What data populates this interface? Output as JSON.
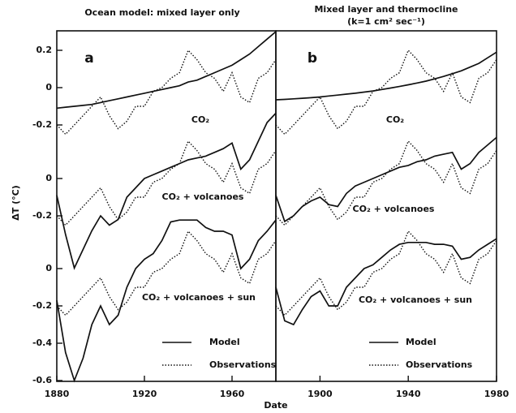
{
  "xlabel": "Date",
  "ylabel": "ΔT (°C)",
  "chart_data": [
    {
      "type": "line",
      "title": "Ocean model: mixed layer only",
      "panel": "a",
      "xlim": [
        1880,
        1980
      ],
      "xticks": [
        1880,
        1920,
        1960
      ],
      "x": [
        1880,
        1884,
        1888,
        1892,
        1896,
        1900,
        1904,
        1908,
        1912,
        1916,
        1920,
        1924,
        1928,
        1932,
        1936,
        1940,
        1944,
        1948,
        1952,
        1956,
        1960,
        1964,
        1968,
        1972,
        1976,
        1980
      ],
      "subplots": [
        {
          "label": "CO₂",
          "ylim": [
            -0.3,
            0.3
          ],
          "yticks": [
            0.2,
            0,
            -0.2
          ],
          "series": [
            {
              "name": "Model",
              "color": "#111111",
              "style": "solid",
              "values": [
                -0.11,
                -0.105,
                -0.1,
                -0.095,
                -0.09,
                -0.08,
                -0.07,
                -0.06,
                -0.05,
                -0.04,
                -0.03,
                -0.02,
                -0.01,
                0.0,
                0.01,
                0.03,
                0.04,
                0.06,
                0.08,
                0.1,
                0.12,
                0.15,
                0.18,
                0.22,
                0.26,
                0.3
              ]
            },
            {
              "name": "Observations",
              "color": "#111111",
              "style": "dotted",
              "values": [
                -0.2,
                -0.25,
                -0.2,
                -0.15,
                -0.1,
                -0.05,
                -0.15,
                -0.22,
                -0.18,
                -0.1,
                -0.1,
                -0.02,
                0.0,
                0.05,
                0.08,
                0.2,
                0.15,
                0.08,
                0.05,
                -0.02,
                0.08,
                -0.05,
                -0.08,
                0.05,
                0.08,
                0.15
              ]
            }
          ]
        },
        {
          "label": "CO₂ + volcanoes",
          "ylim": [
            -0.5,
            0.4
          ],
          "yticks": [
            0,
            -0.2
          ],
          "series": [
            {
              "name": "Model",
              "color": "#111111",
              "style": "solid",
              "values": [
                -0.09,
                -0.3,
                -0.48,
                -0.38,
                -0.28,
                -0.2,
                -0.25,
                -0.22,
                -0.1,
                -0.05,
                0.0,
                0.02,
                0.04,
                0.06,
                0.08,
                0.1,
                0.11,
                0.12,
                0.14,
                0.16,
                0.19,
                0.05,
                0.1,
                0.2,
                0.3,
                0.35
              ]
            },
            {
              "name": "Observations",
              "color": "#111111",
              "style": "dotted",
              "values": [
                -0.2,
                -0.25,
                -0.2,
                -0.15,
                -0.1,
                -0.05,
                -0.15,
                -0.22,
                -0.18,
                -0.1,
                -0.1,
                -0.02,
                0.0,
                0.05,
                0.08,
                0.2,
                0.15,
                0.08,
                0.05,
                -0.02,
                0.08,
                -0.05,
                -0.08,
                0.05,
                0.08,
                0.15
              ]
            }
          ]
        },
        {
          "label": "CO₂ + volcanoes + sun",
          "ylim": [
            -0.6,
            0.3
          ],
          "yticks": [
            0,
            -0.2,
            -0.4,
            -0.6
          ],
          "series": [
            {
              "name": "Model",
              "color": "#111111",
              "style": "solid",
              "values": [
                -0.17,
                -0.45,
                -0.6,
                -0.48,
                -0.3,
                -0.2,
                -0.3,
                -0.25,
                -0.1,
                0.0,
                0.05,
                0.08,
                0.15,
                0.25,
                0.26,
                0.26,
                0.26,
                0.22,
                0.2,
                0.2,
                0.18,
                0.0,
                0.05,
                0.15,
                0.2,
                0.26
              ]
            },
            {
              "name": "Observations",
              "color": "#111111",
              "style": "dotted",
              "values": [
                -0.2,
                -0.25,
                -0.2,
                -0.15,
                -0.1,
                -0.05,
                -0.15,
                -0.22,
                -0.18,
                -0.1,
                -0.1,
                -0.02,
                0.0,
                0.05,
                0.08,
                0.2,
                0.15,
                0.08,
                0.05,
                -0.02,
                0.08,
                -0.05,
                -0.08,
                0.05,
                0.08,
                0.15
              ]
            }
          ]
        }
      ]
    },
    {
      "type": "line",
      "title": "Mixed layer and thermocline",
      "subtitle": "(k=1 cm² sec⁻¹)",
      "panel": "b",
      "xlim": [
        1880,
        1980
      ],
      "xticks": [
        1900,
        1940,
        1980
      ],
      "x": [
        1880,
        1884,
        1888,
        1892,
        1896,
        1900,
        1904,
        1908,
        1912,
        1916,
        1920,
        1924,
        1928,
        1932,
        1936,
        1940,
        1944,
        1948,
        1952,
        1956,
        1960,
        1964,
        1968,
        1972,
        1976,
        1980
      ],
      "subplots": [
        {
          "label": "CO₂",
          "ylim": [
            -0.3,
            0.3
          ],
          "series": [
            {
              "name": "Model",
              "color": "#111111",
              "style": "solid",
              "values": [
                -0.065,
                -0.063,
                -0.06,
                -0.057,
                -0.054,
                -0.05,
                -0.045,
                -0.04,
                -0.035,
                -0.03,
                -0.024,
                -0.018,
                -0.01,
                -0.002,
                0.006,
                0.015,
                0.025,
                0.035,
                0.047,
                0.06,
                0.075,
                0.09,
                0.11,
                0.13,
                0.16,
                0.19
              ]
            },
            {
              "name": "Observations",
              "color": "#111111",
              "style": "dotted",
              "values": [
                -0.2,
                -0.25,
                -0.2,
                -0.15,
                -0.1,
                -0.05,
                -0.15,
                -0.22,
                -0.18,
                -0.1,
                -0.1,
                -0.02,
                0.0,
                0.05,
                0.08,
                0.2,
                0.15,
                0.08,
                0.05,
                -0.02,
                0.08,
                -0.05,
                -0.08,
                0.05,
                0.08,
                0.15
              ]
            }
          ]
        },
        {
          "label": "CO₂ + volcanoes",
          "ylim": [
            -0.5,
            0.4
          ],
          "series": [
            {
              "name": "Model",
              "color": "#111111",
              "style": "solid",
              "values": [
                -0.09,
                -0.23,
                -0.2,
                -0.15,
                -0.12,
                -0.1,
                -0.14,
                -0.15,
                -0.08,
                -0.04,
                -0.02,
                0.0,
                0.02,
                0.04,
                0.06,
                0.07,
                0.09,
                0.1,
                0.12,
                0.13,
                0.14,
                0.05,
                0.08,
                0.14,
                0.18,
                0.22
              ]
            },
            {
              "name": "Observations",
              "color": "#111111",
              "style": "dotted",
              "values": [
                -0.2,
                -0.25,
                -0.2,
                -0.15,
                -0.1,
                -0.05,
                -0.15,
                -0.22,
                -0.18,
                -0.1,
                -0.1,
                -0.02,
                0.0,
                0.05,
                0.08,
                0.2,
                0.15,
                0.08,
                0.05,
                -0.02,
                0.08,
                -0.05,
                -0.08,
                0.05,
                0.08,
                0.15
              ]
            }
          ]
        },
        {
          "label": "CO₂ + volcanoes + sun",
          "ylim": [
            -0.6,
            0.3
          ],
          "series": [
            {
              "name": "Model",
              "color": "#111111",
              "style": "solid",
              "values": [
                -0.1,
                -0.28,
                -0.3,
                -0.22,
                -0.15,
                -0.12,
                -0.2,
                -0.2,
                -0.1,
                -0.05,
                0.0,
                0.02,
                0.06,
                0.1,
                0.13,
                0.14,
                0.14,
                0.14,
                0.13,
                0.13,
                0.12,
                0.05,
                0.06,
                0.1,
                0.13,
                0.16
              ]
            },
            {
              "name": "Observations",
              "color": "#111111",
              "style": "dotted",
              "values": [
                -0.2,
                -0.25,
                -0.2,
                -0.15,
                -0.1,
                -0.05,
                -0.15,
                -0.22,
                -0.18,
                -0.1,
                -0.1,
                -0.02,
                0.0,
                0.05,
                0.08,
                0.2,
                0.15,
                0.08,
                0.05,
                -0.02,
                0.08,
                -0.05,
                -0.08,
                0.05,
                0.08,
                0.15
              ]
            }
          ]
        }
      ]
    }
  ]
}
